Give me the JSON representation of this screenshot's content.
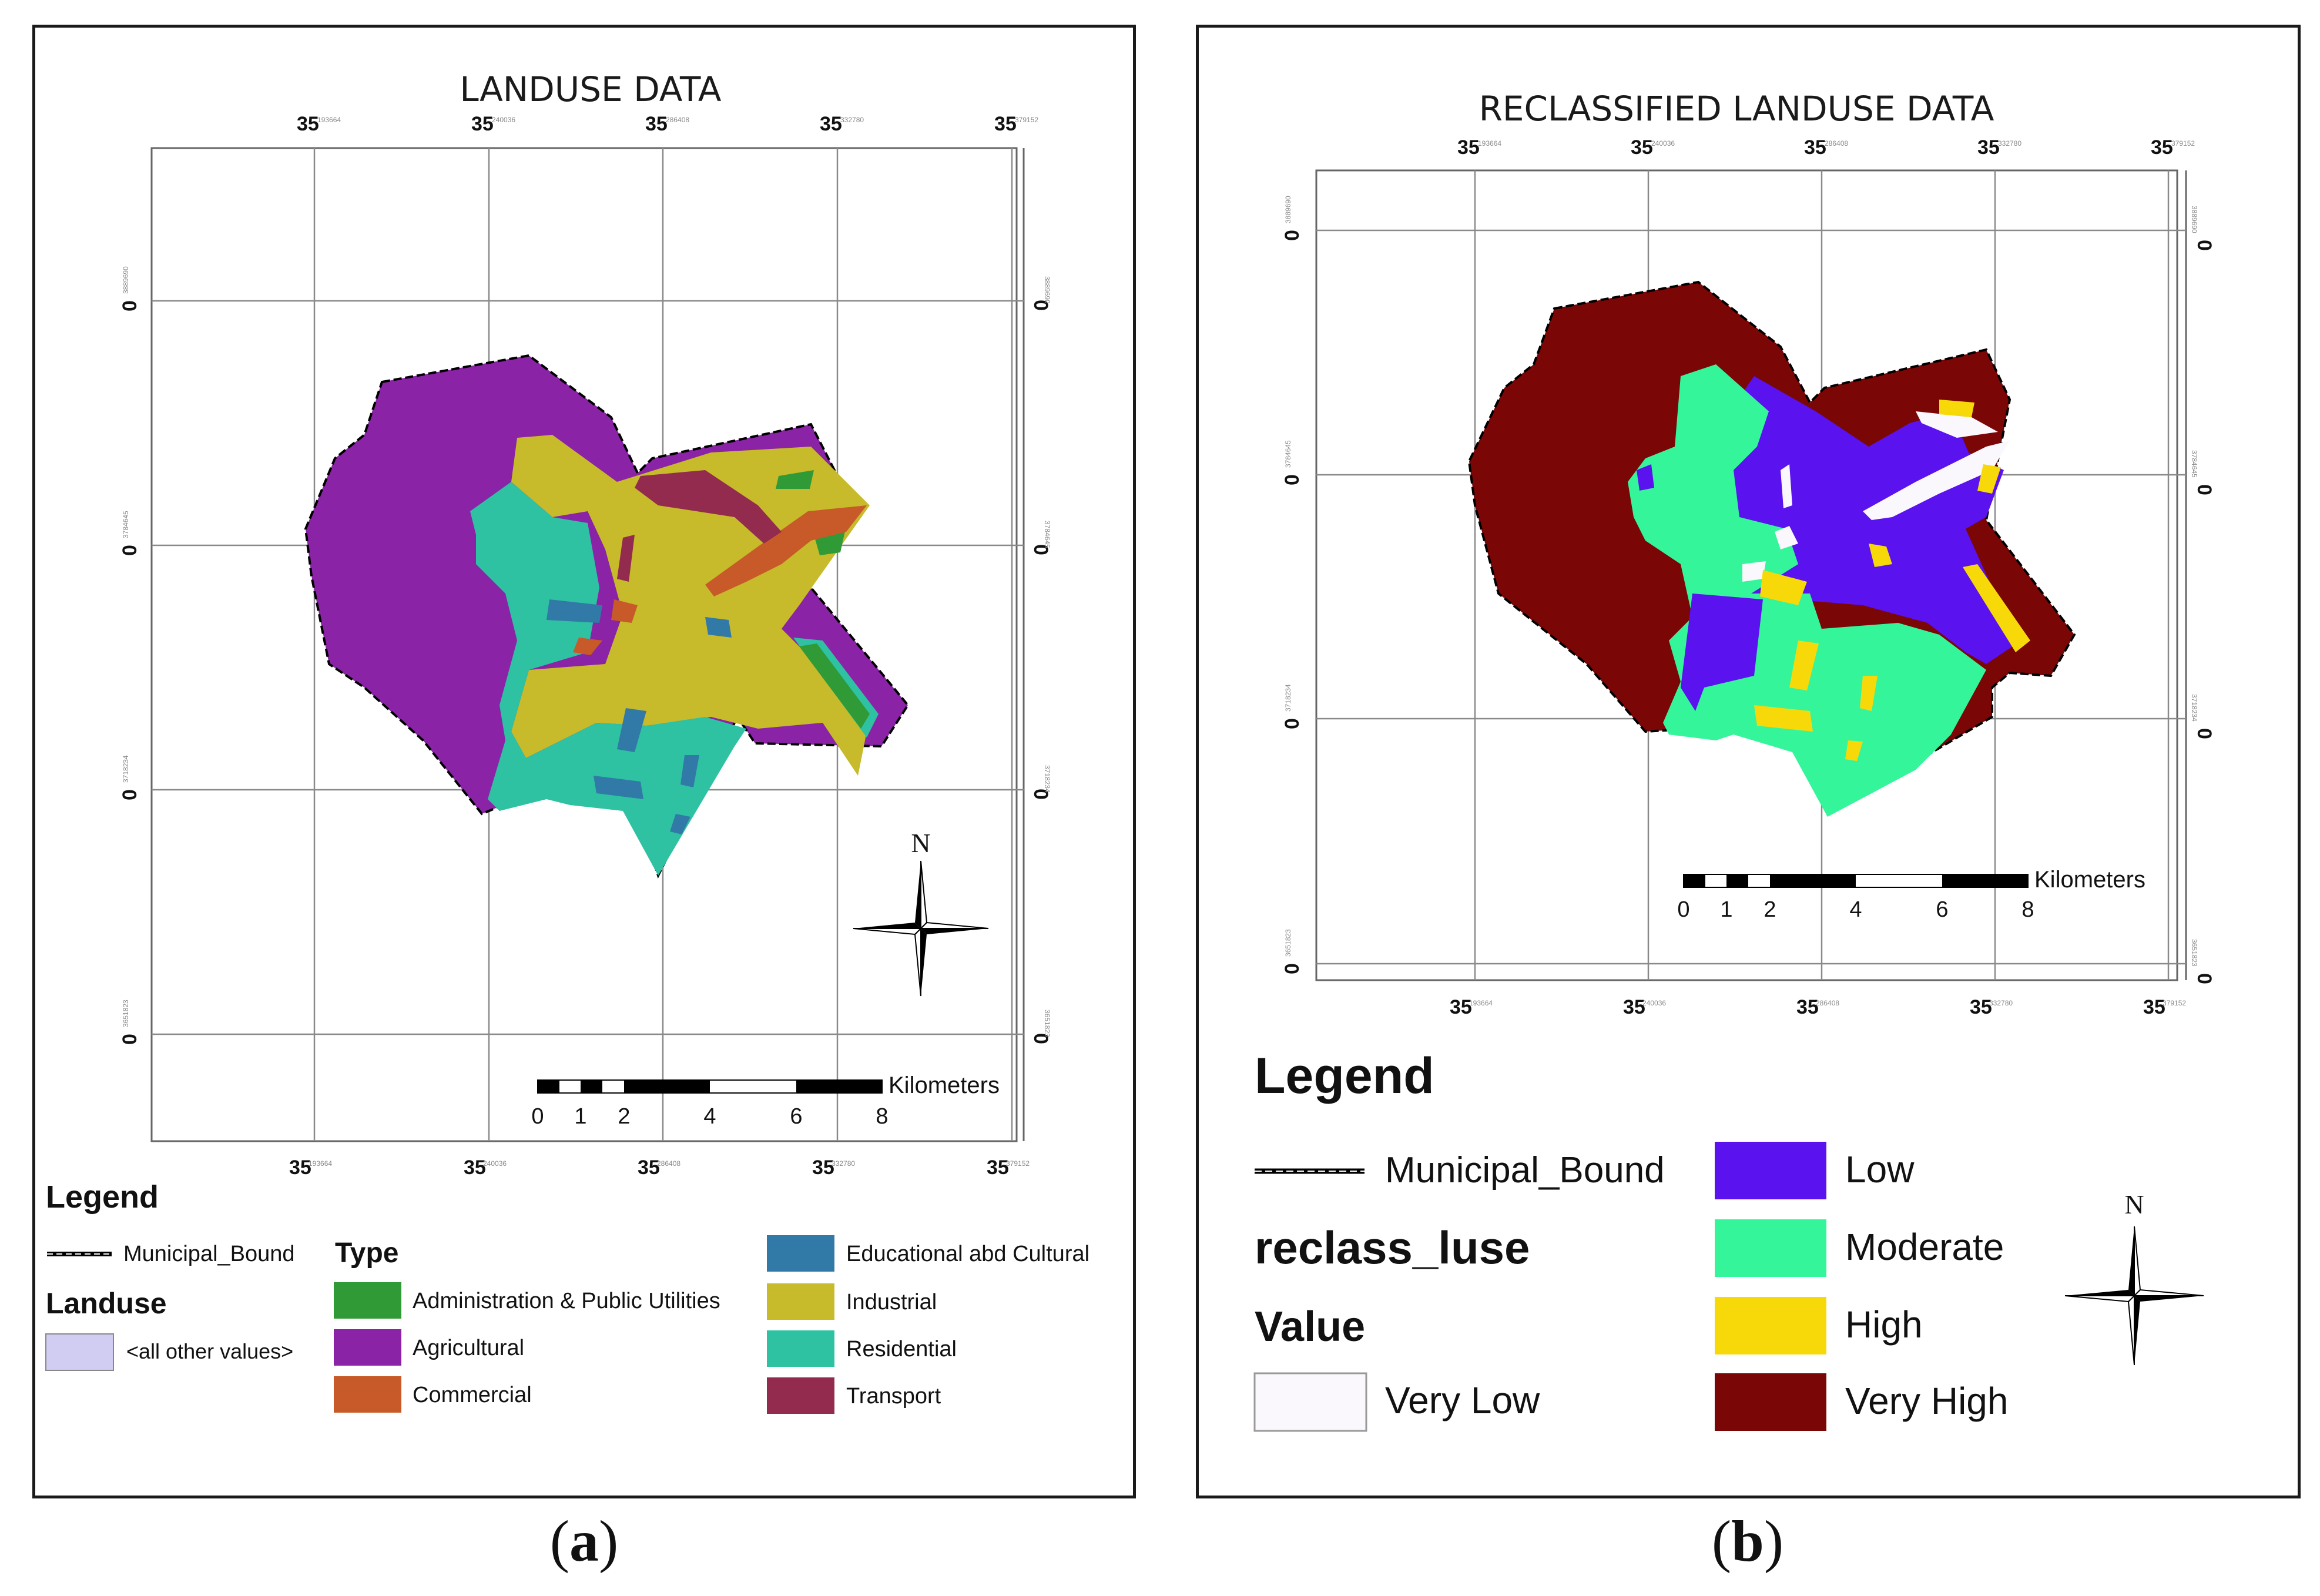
{
  "panel_a": {
    "title": "LANDUSE DATA",
    "coord_top": [
      "35",
      "35",
      "35",
      "35",
      "35"
    ],
    "coord_top_small": [
      "193664",
      "240036",
      "286408",
      "332780",
      "379152"
    ],
    "coord_side": [
      "0",
      "0",
      "0",
      "0"
    ],
    "coord_side_small": [
      "3889690",
      "3784645",
      "3718234",
      "3651823"
    ],
    "scale_unit": "Kilometers",
    "scale_ticks": [
      "0",
      "1",
      "2",
      "4",
      "6",
      "8"
    ],
    "north": "N",
    "legend": {
      "heading": "Legend",
      "boundary": "Municipal_Bound",
      "layer": "Landuse",
      "other": "<all other values>",
      "field": "Type",
      "classes": [
        {
          "label": "Administration & Public Utilities",
          "color": "#2f9a36"
        },
        {
          "label": "Agricultural",
          "color": "#8a23a6"
        },
        {
          "label": "Commercial",
          "color": "#c75a28"
        },
        {
          "label": "Educational abd Cultural",
          "color": "#3179a6"
        },
        {
          "label": "Industrial",
          "color": "#c7ba2b"
        },
        {
          "label": "Residential",
          "color": "#2ec1a2"
        },
        {
          "label": "Transport",
          "color": "#932b4e"
        }
      ],
      "other_color": "#d0ccf2"
    },
    "caption_label": "a"
  },
  "panel_b": {
    "title": "RECLASSIFIED LANDUSE DATA",
    "coord_top": [
      "35",
      "35",
      "35",
      "35",
      "35"
    ],
    "coord_top_small": [
      "193664",
      "240036",
      "286408",
      "332780",
      "379152"
    ],
    "coord_side": [
      "0",
      "0",
      "0",
      "0"
    ],
    "coord_side_small": [
      "3889690",
      "3784645",
      "3718234",
      "3651823"
    ],
    "scale_unit": "Kilometers",
    "scale_ticks": [
      "0",
      "1",
      "2",
      "4",
      "6",
      "8"
    ],
    "north": "N",
    "legend": {
      "heading": "Legend",
      "boundary": "Municipal_Bound",
      "layer": "reclass_luse",
      "field": "Value",
      "classes": [
        {
          "label": "Very Low",
          "color": "#fbf8fd"
        },
        {
          "label": "Low",
          "color": "#5a12ee"
        },
        {
          "label": "Moderate",
          "color": "#35f59a"
        },
        {
          "label": "High",
          "color": "#f7d90a"
        },
        {
          "label": "Very High",
          "color": "#7b0606"
        }
      ]
    },
    "caption_label": "b"
  }
}
